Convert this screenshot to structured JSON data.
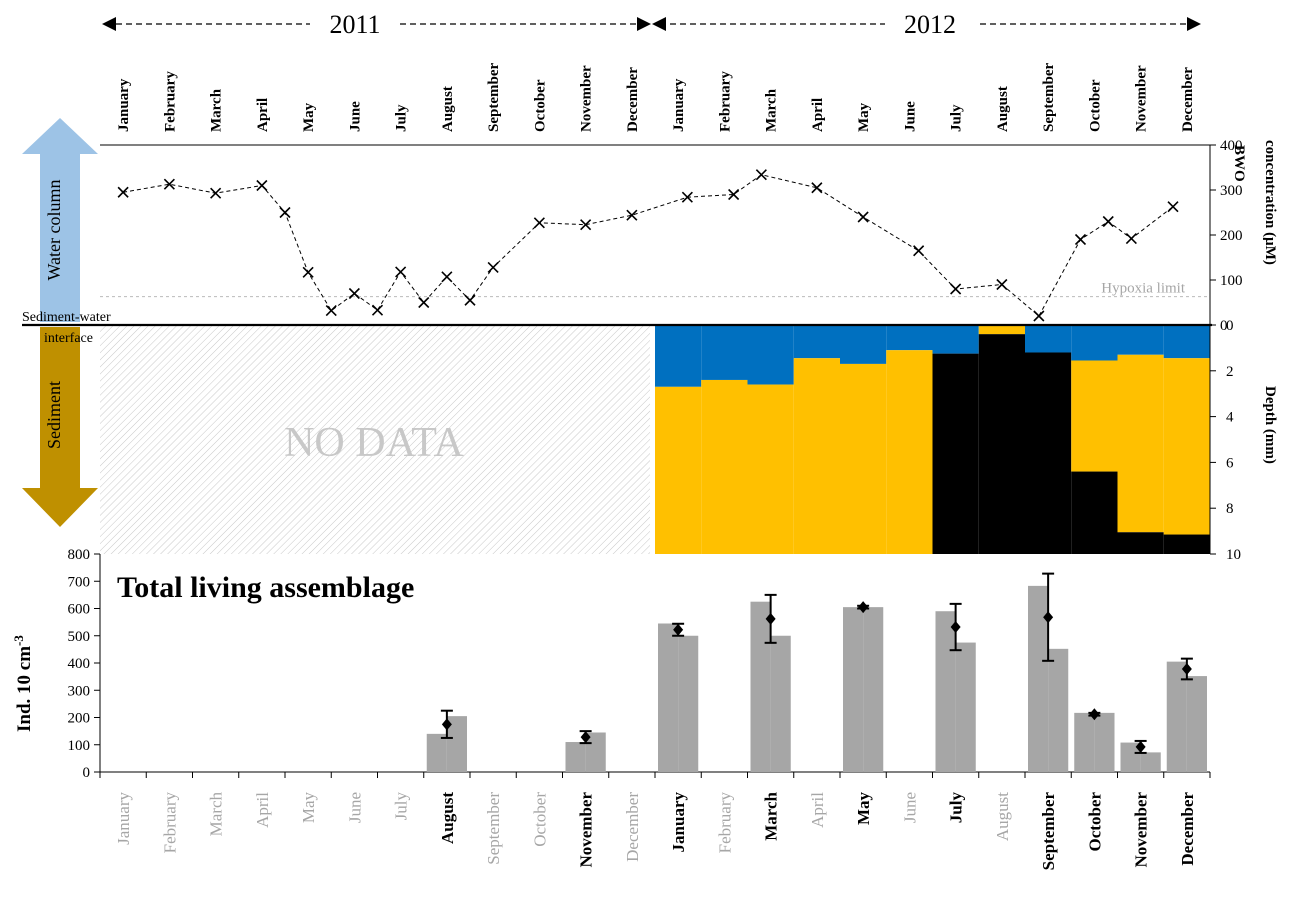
{
  "years": [
    "2011",
    "2012"
  ],
  "months": [
    "January",
    "February",
    "March",
    "April",
    "May",
    "June",
    "July",
    "August",
    "September",
    "October",
    "November",
    "December",
    "January",
    "February",
    "March",
    "April",
    "May",
    "June",
    "July",
    "August",
    "September",
    "October",
    "November",
    "December"
  ],
  "bottom_months_bold": [
    false,
    false,
    false,
    false,
    false,
    false,
    false,
    true,
    false,
    false,
    true,
    false,
    true,
    false,
    true,
    false,
    true,
    false,
    true,
    false,
    true,
    true,
    true,
    true
  ],
  "labels": {
    "water_column": "Water column",
    "sediment": "Sediment",
    "interface": "Sediment-water",
    "interface2": "interface",
    "no_data": "NO DATA",
    "hypoxia": "Hypoxia limit",
    "panel_title": "Total living assemblage",
    "right_top_label": "BWO",
    "right_top_label2": "concentration (µM)",
    "right_mid_label": "Depth (mm)",
    "left_bottom_label": "Ind. 10 cm",
    "left_bottom_sup": "-3"
  },
  "colors": {
    "oxic": "#0070C0",
    "suboxic": "#FFC000",
    "anoxic": "#000000",
    "bars": "#A6A6A6",
    "arrow_up": "#9DC3E6",
    "arrow_down": "#BF9000",
    "faded_text": "#A6A6A6"
  },
  "chart_data": [
    {
      "type": "line",
      "title": "",
      "ylabel": "BWO concentration (µM)",
      "ylim": [
        0,
        400
      ],
      "yticks": [
        0,
        100,
        200,
        300,
        400
      ],
      "hypoxia_limit": 63,
      "series": [
        {
          "x": [
            0.5,
            1.5,
            2.5,
            3.5,
            4.0,
            4.5,
            5.0,
            5.5,
            6.0,
            6.5,
            7.0,
            7.5,
            8.0,
            8.5,
            9.5,
            10.5,
            11.5,
            12.7,
            13.7,
            14.3,
            15.5,
            16.5,
            17.7,
            18.5,
            19.5,
            20.3,
            21.2,
            21.8,
            22.3,
            23.2
          ],
          "y": [
            295,
            313,
            293,
            310,
            250,
            117,
            32,
            70,
            33,
            118,
            50,
            107,
            55,
            128,
            227,
            223,
            244,
            284,
            290,
            334,
            305,
            240,
            165,
            80,
            90,
            20,
            190,
            230,
            192,
            263
          ]
        }
      ]
    },
    {
      "type": "area",
      "title": "",
      "ylabel": "Depth (mm)",
      "ylim": [
        10,
        0
      ],
      "yticks": [
        0,
        2,
        4,
        6,
        8,
        10
      ],
      "legend": [],
      "profiles": [
        {
          "x_start": 12,
          "x_end": 13,
          "oxic_to": 2.7,
          "suboxic_to": 10,
          "anoxic_to": 10
        },
        {
          "x_start": 13,
          "x_end": 14,
          "oxic_to": 2.4,
          "suboxic_to": 10,
          "anoxic_to": 10
        },
        {
          "x_start": 14,
          "x_end": 15,
          "oxic_to": 2.6,
          "suboxic_to": 10,
          "anoxic_to": 10
        },
        {
          "x_start": 15,
          "x_end": 16,
          "oxic_to": 1.45,
          "suboxic_to": 10,
          "anoxic_to": 10
        },
        {
          "x_start": 16,
          "x_end": 17,
          "oxic_to": 1.7,
          "suboxic_to": 10,
          "anoxic_to": 10
        },
        {
          "x_start": 17,
          "x_end": 18,
          "oxic_to": 1.1,
          "suboxic_to": 10,
          "anoxic_to": 10
        },
        {
          "x_start": 18,
          "x_end": 19,
          "oxic_to": 1.25,
          "suboxic_to": 1.25,
          "anoxic_to": 10
        },
        {
          "x_start": 19,
          "x_end": 20,
          "oxic_to": 0,
          "suboxic_to": 0.4,
          "anoxic_to": 10
        },
        {
          "x_start": 20,
          "x_end": 21,
          "oxic_to": 1.2,
          "suboxic_to": 1.2,
          "anoxic_to": 10
        },
        {
          "x_start": 21,
          "x_end": 22,
          "oxic_to": 1.55,
          "suboxic_to": 6.4,
          "anoxic_to": 10
        },
        {
          "x_start": 22,
          "x_end": 23,
          "oxic_to": 1.3,
          "suboxic_to": 9.05,
          "anoxic_to": 10
        },
        {
          "x_start": 23,
          "x_end": 24,
          "oxic_to": 1.45,
          "suboxic_to": 9.15,
          "anoxic_to": 10
        }
      ]
    },
    {
      "type": "bar",
      "title": "Total living assemblage",
      "ylabel": "Ind. 10 cm-3",
      "ylim": [
        0,
        800
      ],
      "yticks": [
        0,
        100,
        200,
        300,
        400,
        500,
        600,
        700,
        800
      ],
      "bars": [
        {
          "month": 7,
          "left": 140,
          "right": 205
        },
        {
          "month": 10,
          "left": 110,
          "right": 145
        },
        {
          "month": 12,
          "left": 545,
          "right": 500
        },
        {
          "month": 14,
          "left": 625,
          "right": 500
        },
        {
          "month": 16,
          "left": 605,
          "right": 605
        },
        {
          "month": 18,
          "left": 590,
          "right": 475
        },
        {
          "month": 20,
          "left": 683,
          "right": 452
        },
        {
          "month": 21,
          "left": 217,
          "right": 217
        },
        {
          "month": 22,
          "left": 108,
          "right": 72
        },
        {
          "month": 23,
          "left": 405,
          "right": 352
        }
      ],
      "means": [
        {
          "month": 7,
          "mean": 175,
          "err": 50
        },
        {
          "month": 10,
          "mean": 128,
          "err": 22
        },
        {
          "month": 12,
          "mean": 522,
          "err": 22
        },
        {
          "month": 14,
          "mean": 562,
          "err": 88
        },
        {
          "month": 16,
          "mean": 605,
          "err": 5
        },
        {
          "month": 18,
          "mean": 532,
          "err": 85
        },
        {
          "month": 20,
          "mean": 568,
          "err": 160
        },
        {
          "month": 21,
          "mean": 212,
          "err": 5
        },
        {
          "month": 22,
          "mean": 92,
          "err": 22
        },
        {
          "month": 23,
          "mean": 378,
          "err": 38
        }
      ]
    }
  ]
}
